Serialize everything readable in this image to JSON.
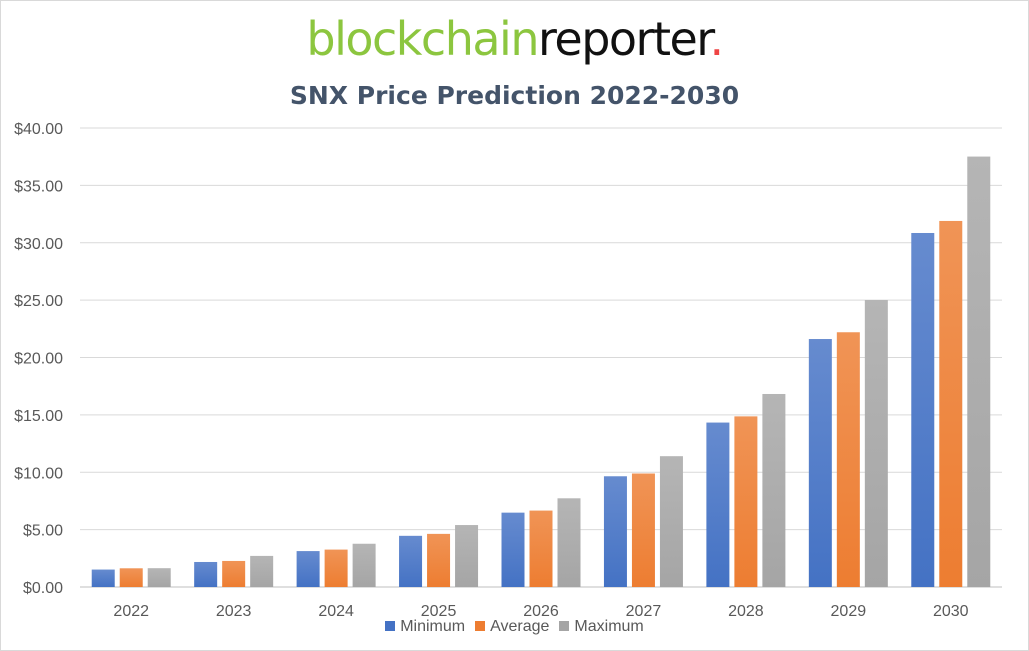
{
  "logo": {
    "part1": "blockchain",
    "part2": "reporter",
    "dot": "."
  },
  "chart_data": {
    "type": "bar",
    "title": "SNX Price Prediction 2022-2030",
    "categories": [
      "2022",
      "2023",
      "2024",
      "2025",
      "2026",
      "2027",
      "2028",
      "2029",
      "2030"
    ],
    "series": [
      {
        "name": "Minimum",
        "color": "#4472c4",
        "values": [
          1.52,
          2.18,
          3.13,
          4.46,
          6.48,
          9.65,
          14.33,
          21.61,
          30.85
        ]
      },
      {
        "name": "Average",
        "color": "#ed7d31",
        "values": [
          1.63,
          2.27,
          3.26,
          4.63,
          6.66,
          9.89,
          14.87,
          22.2,
          31.9
        ]
      },
      {
        "name": "Maximum",
        "color": "#a5a5a5",
        "values": [
          1.64,
          2.71,
          3.77,
          5.4,
          7.73,
          11.4,
          16.82,
          25.01,
          37.51
        ]
      }
    ],
    "yticks": [
      "$0.00",
      "$5.00",
      "$10.00",
      "$15.00",
      "$20.00",
      "$25.00",
      "$30.00",
      "$35.00",
      "$40.00"
    ],
    "ylim": [
      0,
      40
    ],
    "grid": true,
    "legend": "bottom"
  }
}
